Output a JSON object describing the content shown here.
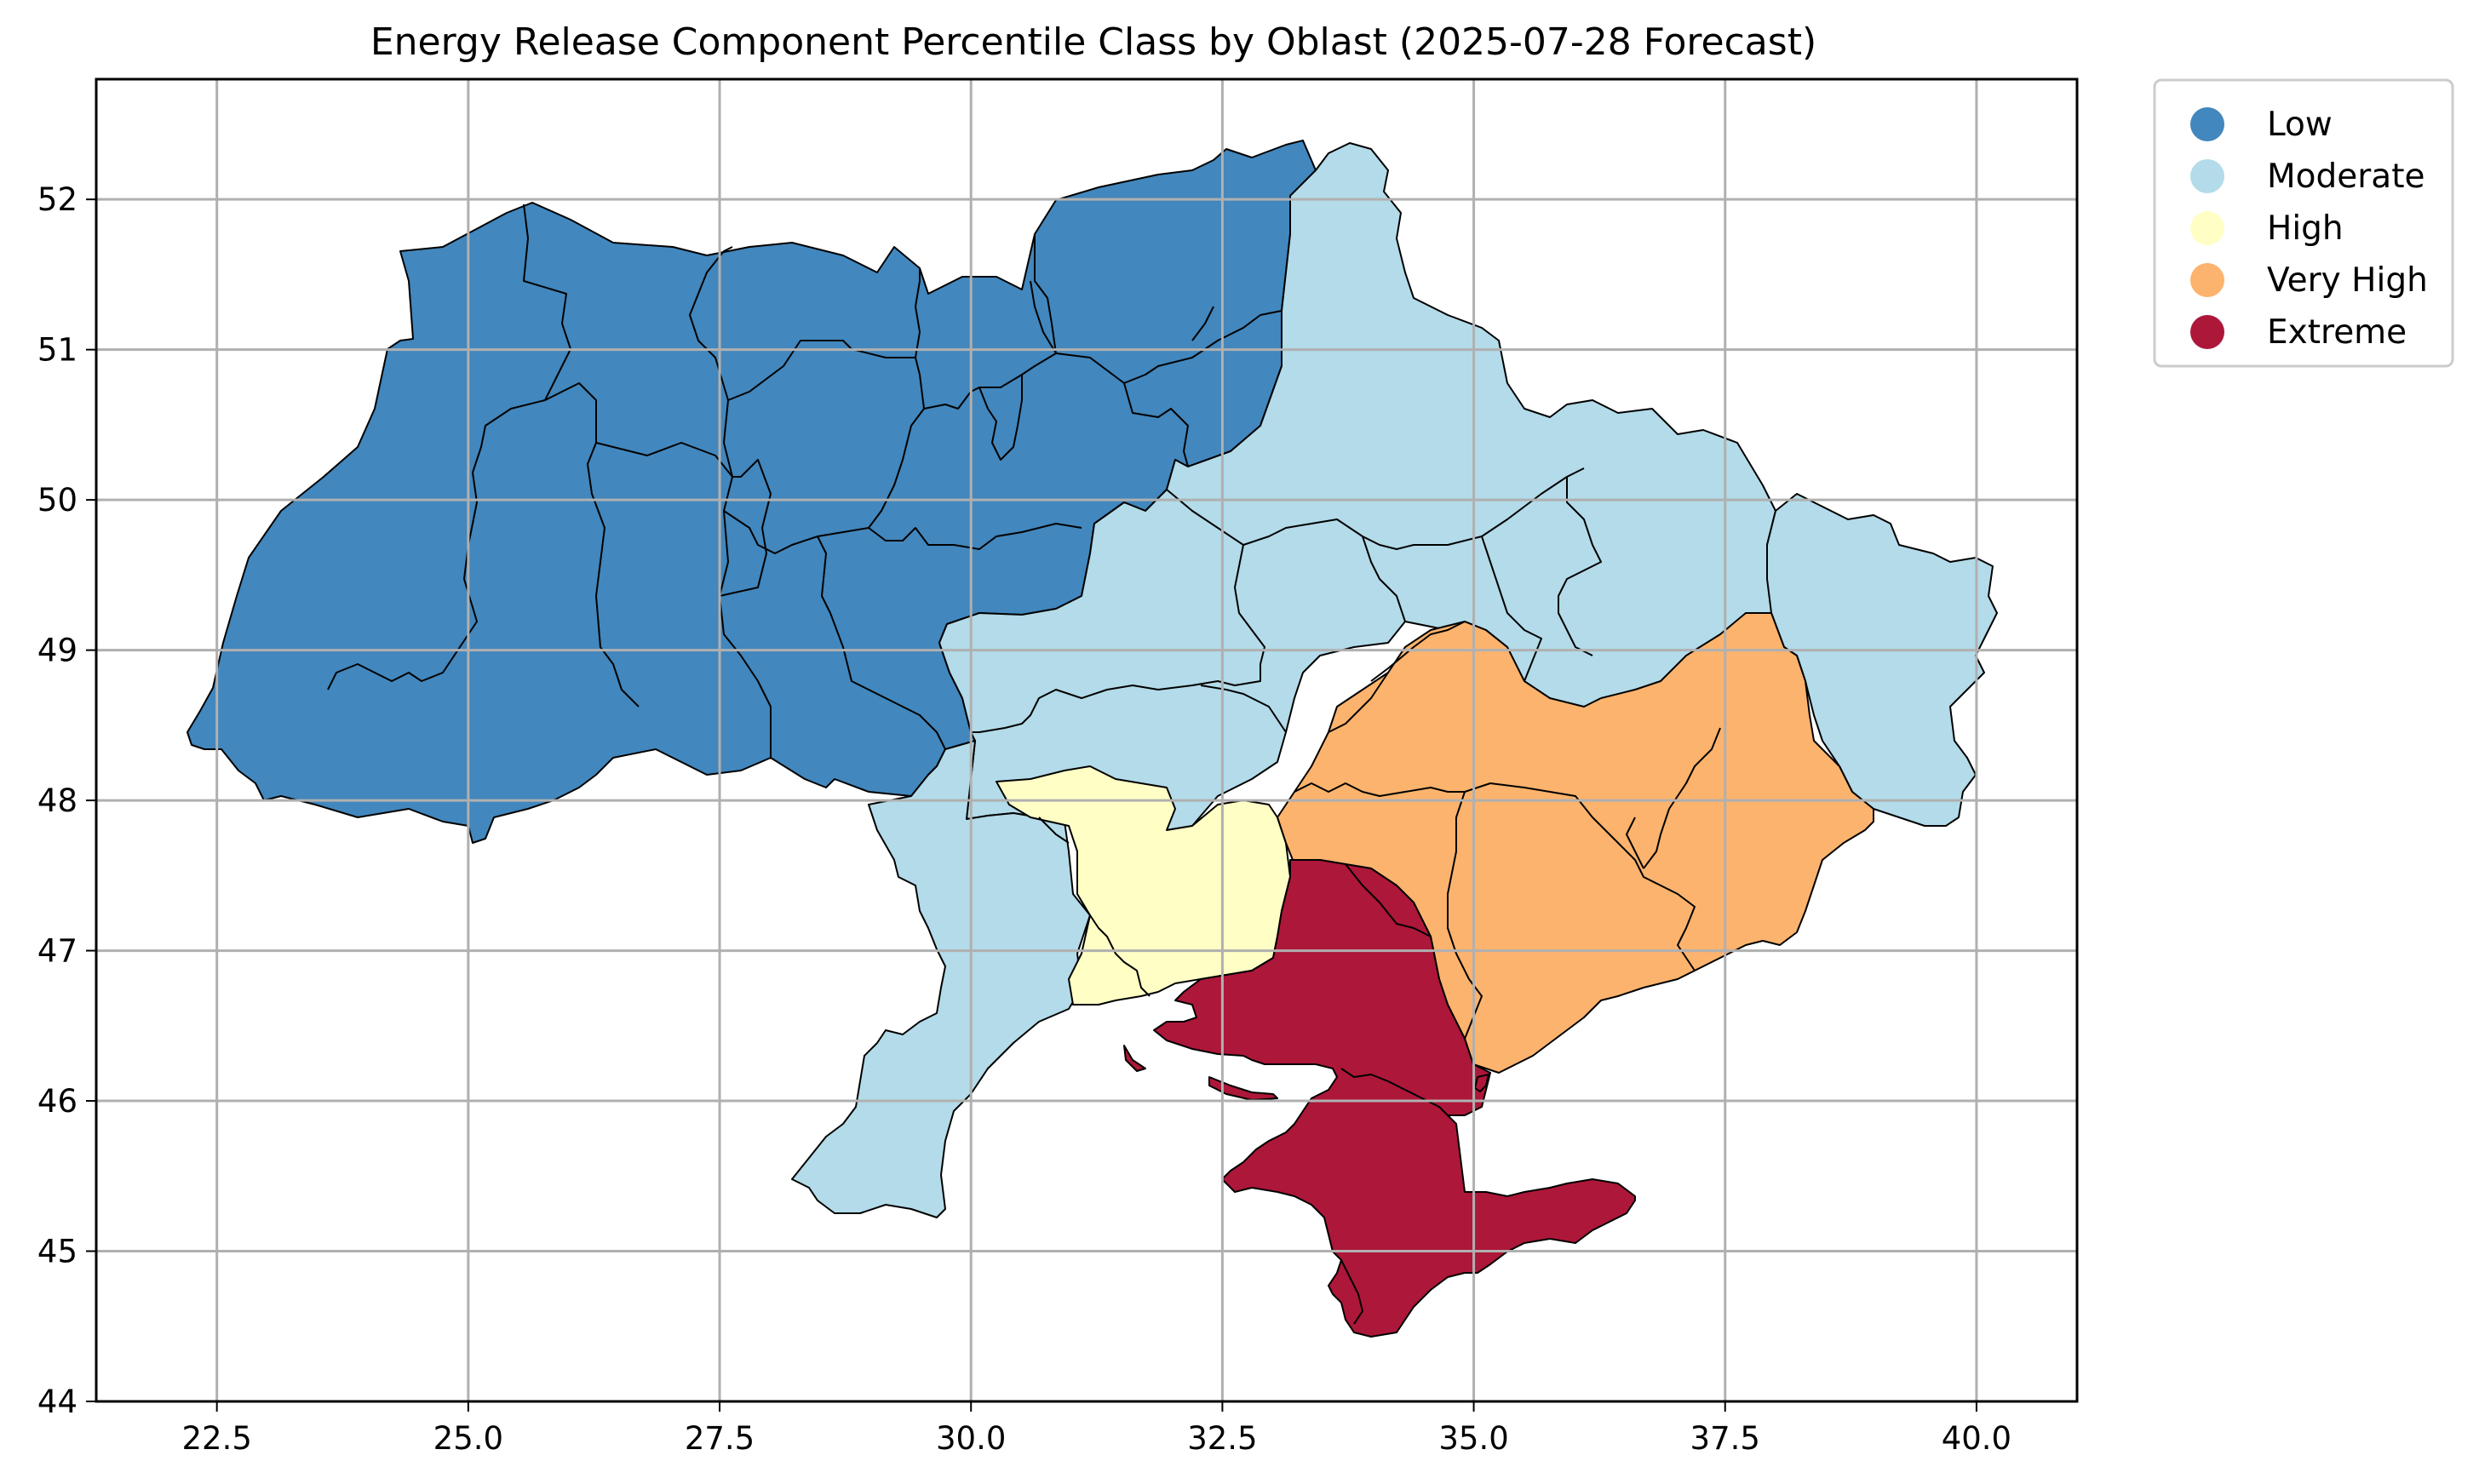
{
  "chart_data": {
    "type": "choropleth",
    "title": "Energy Release Component Percentile Class by Oblast (2025-07-28 Forecast)",
    "xlabel": "",
    "ylabel": "",
    "xlim": [
      21.3,
      41.0
    ],
    "ylim": [
      44.0,
      52.8
    ],
    "x_ticks": [
      "22.5",
      "25.0",
      "27.5",
      "30.0",
      "32.5",
      "35.0",
      "37.5",
      "40.0"
    ],
    "y_ticks": [
      "44",
      "45",
      "46",
      "47",
      "48",
      "49",
      "50",
      "51",
      "52"
    ],
    "grid": true,
    "legend_position": "outside-upper-right",
    "legend": [
      {
        "label": "Low",
        "color": "#4287bd"
      },
      {
        "label": "Moderate",
        "color": "#b3dbe9"
      },
      {
        "label": "High",
        "color": "#ffffc5"
      },
      {
        "label": "Very High",
        "color": "#fcb36d"
      },
      {
        "label": "Extreme",
        "color": "#ad1739"
      }
    ],
    "region_classes": {
      "west_and_north": "Low",
      "east_and_central": "Moderate",
      "mykolaiv": "High",
      "dnipro_zaporizhzhia_donetsk": "Very High",
      "kherson_crimea": "Extreme"
    }
  }
}
